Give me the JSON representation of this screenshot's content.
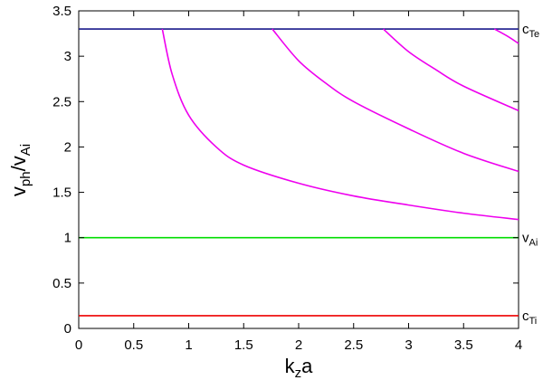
{
  "chart_data": {
    "type": "line",
    "xlabel": {
      "base": "k",
      "sub": "z",
      "tail": "a"
    },
    "ylabel": {
      "base1": "v",
      "sub1": "ph",
      "mid": "/v",
      "sub2": "Ai"
    },
    "xlim": [
      0,
      4
    ],
    "ylim": [
      0,
      3.5
    ],
    "x_ticks": [
      "0",
      "0.5",
      "1",
      "1.5",
      "2",
      "2.5",
      "3",
      "3.5",
      "4"
    ],
    "y_ticks": [
      "0",
      "0.5",
      "1",
      "1.5",
      "2",
      "2.5",
      "3",
      "3.5"
    ],
    "grid": false,
    "right_labels": [
      {
        "base": "c",
        "sub": "Te",
        "y": 3.3
      },
      {
        "base": "v",
        "sub": "Ai",
        "y": 1.0
      },
      {
        "base": "c",
        "sub": "Ti",
        "y": 0.14
      }
    ],
    "series": [
      {
        "color": "#1a1a8c",
        "points": [
          [
            0,
            3.3
          ],
          [
            4,
            3.3
          ]
        ]
      },
      {
        "color": "#00dd00",
        "points": [
          [
            0,
            1.0
          ],
          [
            4,
            1.0
          ]
        ]
      },
      {
        "color": "#ee0000",
        "points": [
          [
            0,
            0.14
          ],
          [
            4,
            0.14
          ]
        ]
      },
      {
        "color": "#ee00ee",
        "points": [
          [
            0.76,
            3.3
          ],
          [
            0.85,
            2.8
          ],
          [
            1.0,
            2.35
          ],
          [
            1.25,
            2.0
          ],
          [
            1.5,
            1.8
          ],
          [
            2.0,
            1.6
          ],
          [
            2.5,
            1.46
          ],
          [
            3.0,
            1.36
          ],
          [
            3.5,
            1.27
          ],
          [
            4.0,
            1.2
          ]
        ]
      },
      {
        "color": "#ee00ee",
        "points": [
          [
            1.76,
            3.3
          ],
          [
            2.0,
            2.95
          ],
          [
            2.25,
            2.7
          ],
          [
            2.5,
            2.5
          ],
          [
            3.0,
            2.2
          ],
          [
            3.5,
            1.93
          ],
          [
            4.0,
            1.73
          ]
        ]
      },
      {
        "color": "#ee00ee",
        "points": [
          [
            2.77,
            3.3
          ],
          [
            3.0,
            3.05
          ],
          [
            3.25,
            2.85
          ],
          [
            3.5,
            2.67
          ],
          [
            4.0,
            2.4
          ]
        ]
      },
      {
        "color": "#ee00ee",
        "points": [
          [
            3.78,
            3.3
          ],
          [
            3.9,
            3.22
          ],
          [
            4.0,
            3.14
          ]
        ]
      }
    ]
  }
}
